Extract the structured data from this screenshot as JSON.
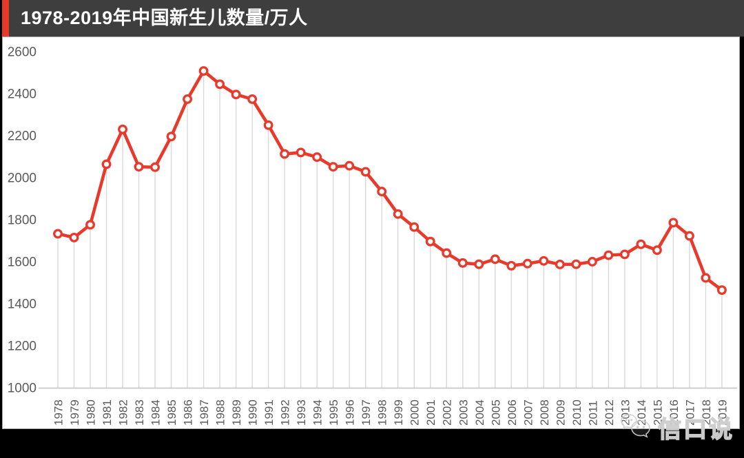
{
  "header": {
    "title": "1978-2019年中国新生儿数量/万人",
    "bg_color": "#3e3e3e",
    "accent_color": "#e8392b",
    "title_color": "#ffffff"
  },
  "watermark": {
    "text": "信口说",
    "icon": "wechat-bubbles-icon"
  },
  "chart_data": {
    "type": "line",
    "title": "1978-2019年中国新生儿数量/万人",
    "x": [
      "1978",
      "1979",
      "1980",
      "1981",
      "1982",
      "1983",
      "1984",
      "1985",
      "1986",
      "1987",
      "1988",
      "1989",
      "1990",
      "1991",
      "1992",
      "1993",
      "1994",
      "1995",
      "1996",
      "1997",
      "1998",
      "1999",
      "2000",
      "2001",
      "2002",
      "2003",
      "2004",
      "2005",
      "2006",
      "2007",
      "2008",
      "2009",
      "2010",
      "2011",
      "2012",
      "2013",
      "2014",
      "2015",
      "2016",
      "2017",
      "2018",
      "2019"
    ],
    "series": [
      {
        "name": "新生儿数量/万人",
        "values": [
          1733,
          1715,
          1776,
          2064,
          2230,
          2052,
          2050,
          2196,
          2374,
          2508,
          2445,
          2396,
          2374,
          2250,
          2113,
          2120,
          2098,
          2052,
          2057,
          2028,
          1934,
          1827,
          1765,
          1696,
          1641,
          1594,
          1588,
          1612,
          1581,
          1591,
          1604,
          1587,
          1588,
          1600,
          1631,
          1635,
          1683,
          1655,
          1786,
          1723,
          1523,
          1465
        ]
      }
    ],
    "ylim": [
      1000,
      2600
    ],
    "yticks": [
      1000,
      1200,
      1400,
      1600,
      1800,
      2000,
      2200,
      2400,
      2600
    ],
    "xlabel": "",
    "ylabel": "",
    "grid": "vertical-drop-lines",
    "legend": "none",
    "line_color": "#e8392b",
    "marker": "open-circle-white-fill",
    "drop_line_color": "#d9d9d9",
    "axis_line_color": "#bfbfbf",
    "tick_label_color": "#595959"
  }
}
